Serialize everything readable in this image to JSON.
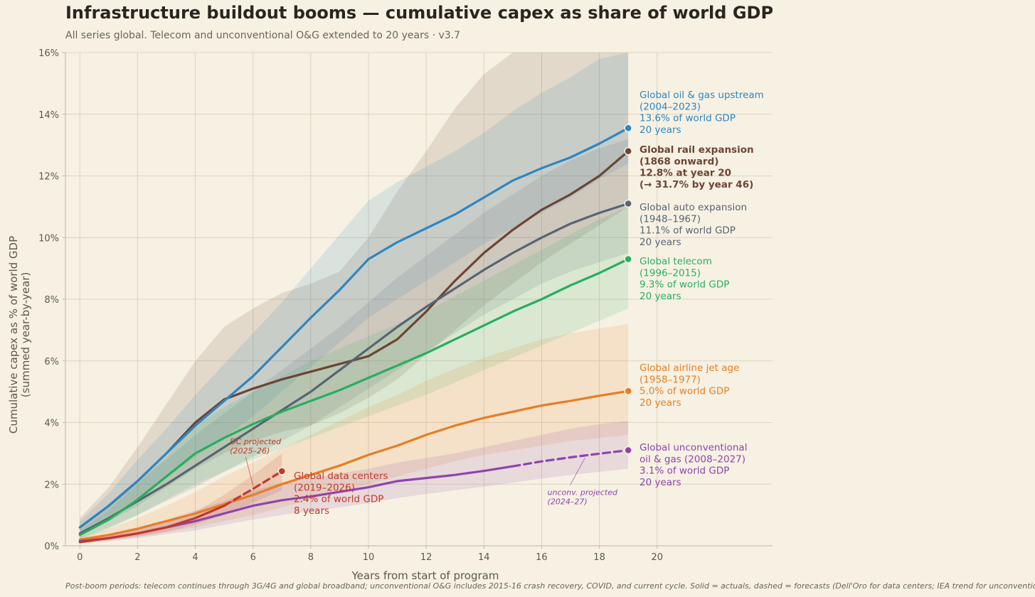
{
  "header": {
    "title": "Infrastructure buildout booms — cumulative capex as share of world GDP",
    "subtitle": "All series global. Telecom and unconventional O&G extended to 20 years  ·  v3.7"
  },
  "footnote": "Post-boom periods: telecom continues through 3G/4G and global broadband; unconventional O&G includes 2015-16 crash recovery, COVID, and current cycle. Solid = actuals, dashed = forecasts (Dell'Oro for data centers; IEA trend for unconventional tail).",
  "chart_data": {
    "type": "line",
    "title": "Infrastructure buildout booms — cumulative capex as share of world GDP",
    "xlabel": "Years from start of program",
    "ylabel_lines": [
      "Cumulative capex as % of world GDP",
      "(summed year-by-year)"
    ],
    "xlim": [
      -0.5,
      24
    ],
    "ylim": [
      0,
      16
    ],
    "xticks": [
      0,
      2,
      4,
      6,
      8,
      10,
      12,
      14,
      16,
      18,
      20
    ],
    "yticks": [
      0,
      2,
      4,
      6,
      8,
      10,
      12,
      14,
      16
    ],
    "ytick_labels": [
      "0%",
      "2%",
      "4%",
      "6%",
      "8%",
      "10%",
      "12%",
      "14%",
      "16%"
    ],
    "grid": true,
    "shaded_region_x": [
      0,
      19
    ],
    "series": [
      {
        "name": "Global rail expansion",
        "color": "#6b4535",
        "bold_label": true,
        "label_lines": [
          "Global rail expansion",
          "(1868 onward)",
          "12.8% at year 20",
          "(→ 31.7% by year 46)"
        ],
        "x": [
          0,
          1,
          2,
          3,
          4,
          5,
          6,
          7,
          8,
          9,
          10,
          11,
          12,
          13,
          14,
          15,
          16,
          17,
          18,
          19
        ],
        "values": [
          0.6,
          1.3,
          2.1,
          3.0,
          4.0,
          4.75,
          5.1,
          5.4,
          5.65,
          5.9,
          6.15,
          6.7,
          7.6,
          8.6,
          9.5,
          10.25,
          10.9,
          11.4,
          12.0,
          12.8
        ],
        "band_lower": [
          0.4,
          0.8,
          1.3,
          1.9,
          2.5,
          3.0,
          3.4,
          3.7,
          3.9,
          4.3,
          4.8,
          5.4,
          6.2,
          7.0,
          7.8,
          8.5,
          9.2,
          9.8,
          10.4,
          11.0
        ],
        "band_upper": [
          0.9,
          1.9,
          3.2,
          4.6,
          6.0,
          7.1,
          7.7,
          8.2,
          8.5,
          8.9,
          10.0,
          11.5,
          12.8,
          14.2,
          15.3,
          16.0,
          16.0,
          16.0,
          16.0,
          16.0
        ]
      },
      {
        "name": "Global oil & gas upstream",
        "color": "#2e86c1",
        "label_lines": [
          "Global oil & gas upstream",
          "(2004–2023)",
          "13.6% of world GDP",
          "20 years"
        ],
        "x": [
          0,
          1,
          2,
          3,
          4,
          5,
          6,
          7,
          8,
          9,
          10,
          11,
          12,
          13,
          14,
          15,
          16,
          17,
          18,
          19
        ],
        "values": [
          0.6,
          1.3,
          2.1,
          3.0,
          3.9,
          4.7,
          5.5,
          6.45,
          7.4,
          8.3,
          9.3,
          9.85,
          10.3,
          10.75,
          11.3,
          11.85,
          12.25,
          12.6,
          13.05,
          13.55
        ],
        "band_lower": [
          0.4,
          0.9,
          1.5,
          2.2,
          2.9,
          3.5,
          4.2,
          5.0,
          5.8,
          6.6,
          7.4,
          8.0,
          8.6,
          9.2,
          9.8,
          10.3,
          10.8,
          11.3,
          11.9,
          12.4
        ],
        "band_upper": [
          0.8,
          1.7,
          2.8,
          3.8,
          4.9,
          5.9,
          6.9,
          7.9,
          9.0,
          10.1,
          11.2,
          11.8,
          12.3,
          12.8,
          13.4,
          14.1,
          14.7,
          15.2,
          15.8,
          16.0
        ]
      },
      {
        "name": "Global auto expansion",
        "color": "#566573",
        "label_lines": [
          "Global auto expansion",
          "(1948–1967)",
          "11.1% of world GDP",
          "20 years"
        ],
        "x": [
          0,
          1,
          2,
          3,
          4,
          5,
          6,
          7,
          8,
          9,
          10,
          11,
          12,
          13,
          14,
          15,
          16,
          17,
          18,
          19
        ],
        "values": [
          0.4,
          0.9,
          1.45,
          2.0,
          2.6,
          3.2,
          3.8,
          4.4,
          5.0,
          5.7,
          6.4,
          7.1,
          7.75,
          8.35,
          8.95,
          9.5,
          10.0,
          10.45,
          10.8,
          11.1
        ],
        "band_lower": [
          0.25,
          0.6,
          1.0,
          1.45,
          1.9,
          2.4,
          2.9,
          3.4,
          3.9,
          4.5,
          5.1,
          5.7,
          6.3,
          6.9,
          7.5,
          8.0,
          8.5,
          8.9,
          9.2,
          9.5
        ],
        "band_upper": [
          0.6,
          1.3,
          2.1,
          2.8,
          3.6,
          4.3,
          5.0,
          5.7,
          6.4,
          7.1,
          7.9,
          8.7,
          9.4,
          10.1,
          10.8,
          11.4,
          12.0,
          12.5,
          12.9,
          13.2
        ]
      },
      {
        "name": "Global telecom",
        "color": "#27ae60",
        "label_lines": [
          "Global telecom",
          "(1996–2015)",
          "9.3% of world GDP",
          "20 years"
        ],
        "x": [
          0,
          1,
          2,
          3,
          4,
          5,
          6,
          7,
          8,
          9,
          10,
          11,
          12,
          13,
          14,
          15,
          16,
          17,
          18,
          19
        ],
        "values": [
          0.35,
          0.85,
          1.5,
          2.25,
          3.0,
          3.5,
          3.95,
          4.35,
          4.7,
          5.05,
          5.45,
          5.85,
          6.25,
          6.7,
          7.15,
          7.6,
          8.0,
          8.45,
          8.85,
          9.3
        ],
        "band_lower": [
          0.2,
          0.55,
          1.0,
          1.5,
          2.0,
          2.4,
          2.8,
          3.15,
          3.5,
          3.85,
          4.2,
          4.55,
          4.9,
          5.3,
          5.7,
          6.1,
          6.5,
          6.9,
          7.3,
          7.7
        ],
        "band_upper": [
          0.5,
          1.15,
          2.0,
          2.9,
          3.9,
          4.5,
          5.0,
          5.5,
          6.0,
          6.4,
          6.8,
          7.2,
          7.6,
          8.1,
          8.6,
          9.1,
          9.6,
          10.1,
          10.6,
          11.0
        ]
      },
      {
        "name": "Global airline jet age",
        "color": "#e67e22",
        "label_lines": [
          "Global airline jet age",
          "(1958–1977)",
          "5.0% of world GDP",
          "20 years"
        ],
        "x": [
          0,
          1,
          2,
          3,
          4,
          5,
          6,
          7,
          8,
          9,
          10,
          11,
          12,
          13,
          14,
          15,
          16,
          17,
          18,
          19
        ],
        "values": [
          0.2,
          0.35,
          0.55,
          0.8,
          1.05,
          1.35,
          1.65,
          2.0,
          2.3,
          2.6,
          2.95,
          3.25,
          3.6,
          3.9,
          4.15,
          4.35,
          4.55,
          4.7,
          4.87,
          5.02
        ],
        "band_lower": [
          0.1,
          0.2,
          0.3,
          0.45,
          0.6,
          0.8,
          1.0,
          1.25,
          1.5,
          1.75,
          2.0,
          2.25,
          2.5,
          2.75,
          2.95,
          3.1,
          3.25,
          3.4,
          3.5,
          3.6
        ],
        "band_upper": [
          0.3,
          0.55,
          0.9,
          1.3,
          1.75,
          2.25,
          2.7,
          3.15,
          3.6,
          4.05,
          4.5,
          4.9,
          5.35,
          5.75,
          6.1,
          6.4,
          6.7,
          6.9,
          7.05,
          7.2
        ]
      },
      {
        "name": "Global unconventional oil & gas",
        "color": "#8e44ad",
        "label_lines": [
          "Global unconventional",
          "oil & gas (2008–2027)",
          "3.1% of world GDP",
          "20 years"
        ],
        "x": [
          0,
          1,
          2,
          3,
          4,
          5,
          6,
          7,
          8,
          9,
          10,
          11,
          12,
          13,
          14,
          15,
          16,
          17,
          18,
          19
        ],
        "values": [
          0.15,
          0.25,
          0.4,
          0.6,
          0.8,
          1.05,
          1.3,
          1.48,
          1.6,
          1.75,
          1.9,
          2.1,
          2.2,
          2.3,
          2.43,
          2.58,
          2.74,
          2.87,
          2.99,
          3.1
        ],
        "dashed_from_x": 15,
        "band_lower": [
          0.08,
          0.15,
          0.25,
          0.38,
          0.5,
          0.68,
          0.85,
          1.0,
          1.12,
          1.25,
          1.38,
          1.55,
          1.68,
          1.8,
          1.92,
          2.05,
          2.18,
          2.3,
          2.4,
          2.5
        ],
        "band_upper": [
          0.25,
          0.4,
          0.6,
          0.85,
          1.15,
          1.45,
          1.8,
          2.05,
          2.2,
          2.35,
          2.5,
          2.7,
          2.85,
          3.0,
          3.2,
          3.4,
          3.6,
          3.8,
          3.95,
          4.05
        ]
      },
      {
        "name": "Global data centers",
        "color": "#c0392b",
        "label_lines": [
          "Global data centers",
          "(2019–2026)",
          "2.4% of world GDP",
          "8 years"
        ],
        "x": [
          0,
          1,
          2,
          3,
          4,
          5,
          6,
          7
        ],
        "values": [
          0.12,
          0.25,
          0.4,
          0.6,
          0.9,
          1.3,
          1.85,
          2.42
        ],
        "dashed_from_x": 5,
        "band_lower": [
          0.08,
          0.18,
          0.3,
          0.45,
          0.7,
          1.0,
          1.4,
          1.8
        ],
        "band_upper": [
          0.16,
          0.32,
          0.5,
          0.75,
          1.1,
          1.65,
          2.3,
          3.0
        ]
      }
    ],
    "annotations": [
      {
        "text_lines": [
          "DC projected",
          "(2025–26)"
        ],
        "color": "#c0392b",
        "x": 5.2,
        "y": 3.3,
        "arrow_to": [
          6.0,
          1.95
        ]
      },
      {
        "text_lines": [
          "unconv. projected",
          "(2024–27)"
        ],
        "color": "#8e44ad",
        "x": 16.2,
        "y": 1.65,
        "arrow_to": [
          17.5,
          2.85
        ]
      }
    ]
  }
}
